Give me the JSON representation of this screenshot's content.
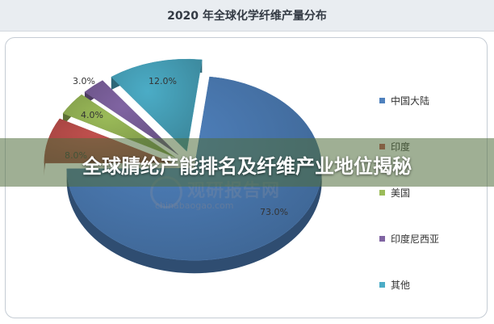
{
  "title": "2020 年全球化学纤维产量分布",
  "banner": "全球腈纶产能排名及纤维产业地位揭秘",
  "watermark": {
    "brand": "观研报告网",
    "url": "chinabaogao.com"
  },
  "colors": {
    "china": "#4f81bd",
    "india": "#c0504d",
    "usa": "#9bbb59",
    "indonesia": "#8064a2",
    "other": "#4bacc6"
  },
  "chart_data": {
    "type": "pie",
    "title": "2020 年全球化学纤维产量分布",
    "slices": [
      {
        "name": "中国大陆",
        "value": 73.0,
        "label": "73.0%",
        "color_key": "china"
      },
      {
        "name": "印度",
        "value": 8.0,
        "label": "8.0%",
        "color_key": "india"
      },
      {
        "name": "美国",
        "value": 4.0,
        "label": "4.0%",
        "color_key": "usa"
      },
      {
        "name": "印度尼西亚",
        "value": 3.0,
        "label": "3.0%",
        "color_key": "indonesia"
      },
      {
        "name": "其他",
        "value": 12.0,
        "label": "12.0%",
        "color_key": "other"
      }
    ],
    "legend_position": "right"
  }
}
